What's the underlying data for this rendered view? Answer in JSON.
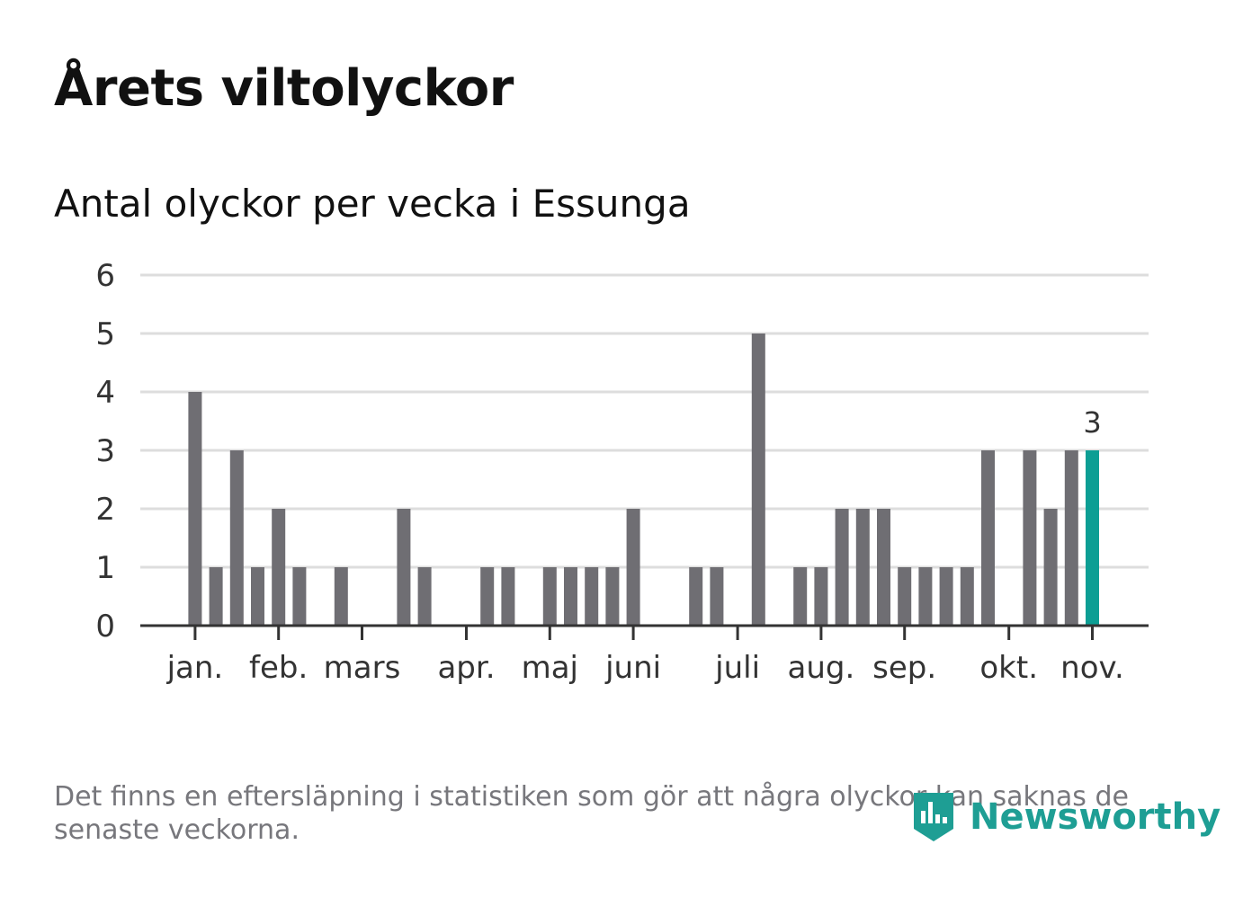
{
  "title": "Årets viltolyckor",
  "subtitle": "Antal olyckor per vecka i Essunga",
  "footnote": "Det finns en eftersläpning i statistiken som gör att några olyckor kan saknas de senaste veckorna.",
  "logo": {
    "text": "Newsworthy"
  },
  "colors": {
    "bar": "#6f6e73",
    "highlight": "#0c9e94",
    "grid": "#dddddd",
    "axis": "#333333"
  },
  "chart_data": {
    "type": "bar",
    "title": "Antal olyckor per vecka i Essunga",
    "xlabel": "",
    "ylabel": "",
    "ylim": [
      0,
      6
    ],
    "yticks": [
      0,
      1,
      2,
      3,
      4,
      5,
      6
    ],
    "weeks": [
      1,
      2,
      3,
      4,
      5,
      6,
      7,
      8,
      9,
      10,
      11,
      12,
      13,
      14,
      15,
      16,
      17,
      18,
      19,
      20,
      21,
      22,
      23,
      24,
      25,
      26,
      27,
      28,
      29,
      30,
      31,
      32,
      33,
      34,
      35,
      36,
      37,
      38,
      39,
      40,
      41,
      42,
      43,
      44,
      45,
      46
    ],
    "values": [
      0,
      0,
      4,
      1,
      3,
      1,
      2,
      1,
      0,
      1,
      0,
      0,
      2,
      1,
      0,
      0,
      1,
      1,
      0,
      1,
      1,
      1,
      1,
      2,
      0,
      0,
      1,
      1,
      0,
      5,
      0,
      1,
      1,
      2,
      2,
      2,
      1,
      1,
      1,
      1,
      3,
      0,
      3,
      2,
      3,
      3
    ],
    "highlight_index": 45,
    "highlight_label": "3",
    "month_ticks": [
      {
        "label": "jan.",
        "week": 3
      },
      {
        "label": "feb.",
        "week": 7
      },
      {
        "label": "mars",
        "week": 11
      },
      {
        "label": "apr.",
        "week": 16
      },
      {
        "label": "maj",
        "week": 20
      },
      {
        "label": "juni",
        "week": 24
      },
      {
        "label": "juli",
        "week": 29
      },
      {
        "label": "aug.",
        "week": 33
      },
      {
        "label": "sep.",
        "week": 37
      },
      {
        "label": "okt.",
        "week": 42
      },
      {
        "label": "nov.",
        "week": 46
      }
    ]
  }
}
